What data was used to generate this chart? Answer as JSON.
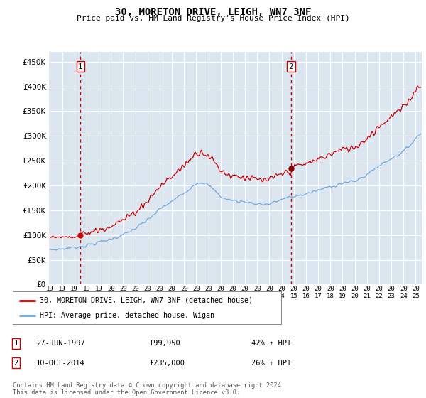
{
  "title": "30, MORETON DRIVE, LEIGH, WN7 3NF",
  "subtitle": "Price paid vs. HM Land Registry's House Price Index (HPI)",
  "background_color": "#dce6f1",
  "ylim": [
    0,
    470000
  ],
  "yticks": [
    0,
    50000,
    100000,
    150000,
    200000,
    250000,
    300000,
    350000,
    400000,
    450000
  ],
  "sale1_date": 1997.5,
  "sale1_price": 99950,
  "sale2_date": 2014.77,
  "sale2_price": 235000,
  "hpi_color": "#6fa8dc",
  "price_color": "#cc0000",
  "vline_color": "#cc0000",
  "grid_color": "#ffffff",
  "legend_entry1": "30, MORETON DRIVE, LEIGH, WN7 3NF (detached house)",
  "legend_entry2": "HPI: Average price, detached house, Wigan",
  "annotation1_date": "27-JUN-1997",
  "annotation1_price": "£99,950",
  "annotation1_hpi": "42% ↑ HPI",
  "annotation2_date": "10-OCT-2014",
  "annotation2_price": "£235,000",
  "annotation2_hpi": "26% ↑ HPI",
  "footer": "Contains HM Land Registry data © Crown copyright and database right 2024.\nThis data is licensed under the Open Government Licence v3.0.",
  "xmin": 1994.92,
  "xmax": 2025.5
}
